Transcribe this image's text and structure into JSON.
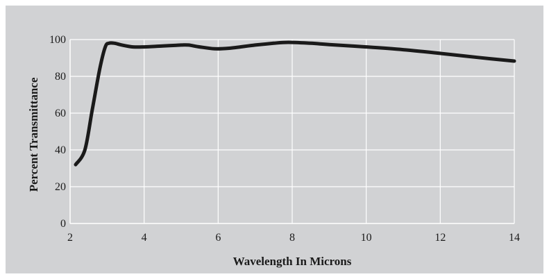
{
  "chart_data": {
    "type": "line",
    "title": "",
    "xlabel": "Wavelength In Microns",
    "ylabel": "Percent Transmittance",
    "xlim": [
      2,
      14
    ],
    "ylim": [
      0,
      100
    ],
    "xticks": [
      2,
      4,
      6,
      8,
      10,
      12,
      14
    ],
    "yticks": [
      0,
      20,
      40,
      60,
      80,
      100
    ],
    "grid": true,
    "legend": "none",
    "colors": {
      "background": "#d1d2d4",
      "grid": "#ffffff",
      "line": "#1a1a1a"
    },
    "series": [
      {
        "x": [
          2.15,
          2.4,
          2.6,
          2.8,
          2.95,
          3.05,
          3.2,
          3.4,
          3.7,
          4.0,
          4.5,
          5.0,
          5.2,
          5.5,
          5.9,
          6.3,
          7.0,
          7.5,
          7.9,
          8.5,
          9.0,
          10.0,
          11.0,
          12.0,
          13.0,
          14.0
        ],
        "y": [
          32,
          40,
          62,
          84,
          96,
          98,
          98,
          97,
          96,
          96,
          96.5,
          97,
          97,
          96,
          95,
          95.3,
          97,
          98,
          98.5,
          98,
          97.3,
          96,
          94.5,
          92.5,
          90.3,
          88.3
        ]
      }
    ]
  }
}
